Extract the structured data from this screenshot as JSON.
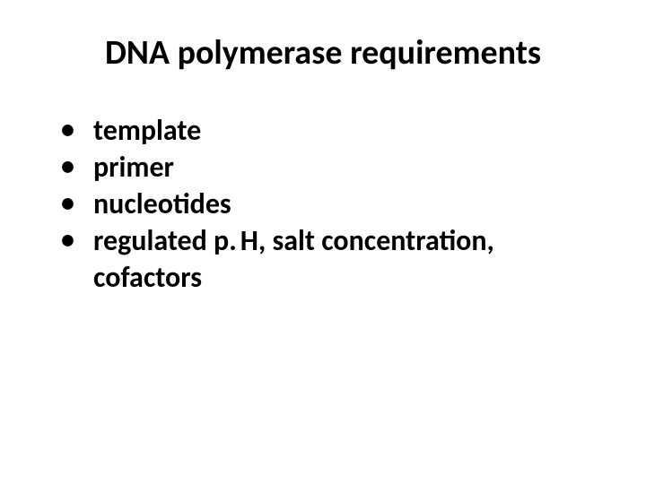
{
  "slide": {
    "title": "DNA polymerase requirements",
    "bullets": [
      "template",
      "primer",
      "nucleotides",
      "regulated p. H, salt concentration, cofactors"
    ],
    "styling": {
      "background_color": "#ffffff",
      "text_color": "#000000",
      "title_fontsize": 38,
      "bullet_fontsize": 32,
      "font_weight": 700,
      "font_family": "Calibri"
    }
  }
}
